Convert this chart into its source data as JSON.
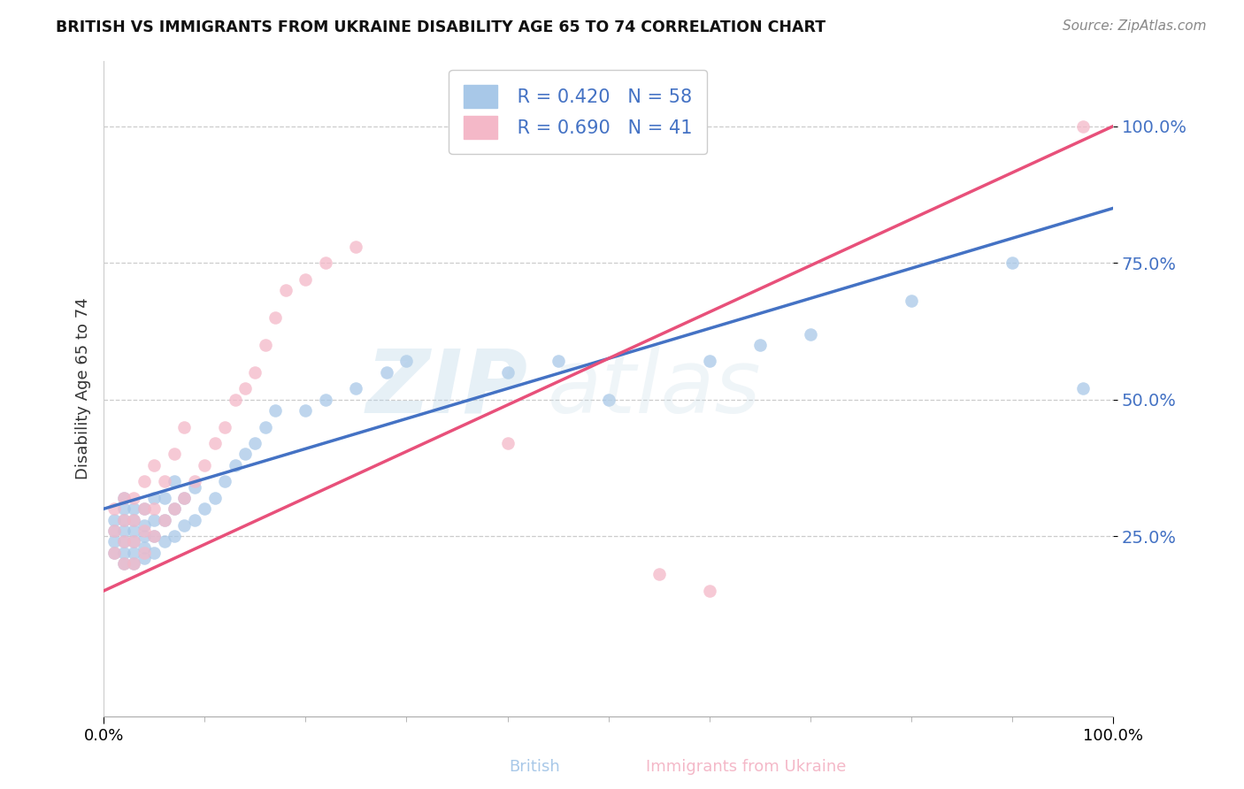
{
  "title": "BRITISH VS IMMIGRANTS FROM UKRAINE DISABILITY AGE 65 TO 74 CORRELATION CHART",
  "source": "Source: ZipAtlas.com",
  "ylabel": "Disability Age 65 to 74",
  "xlim": [
    0.0,
    1.0
  ],
  "ylim": [
    -0.08,
    1.12
  ],
  "yticks": [
    0.25,
    0.5,
    0.75,
    1.0
  ],
  "ytick_labels": [
    "25.0%",
    "50.0%",
    "75.0%",
    "100.0%"
  ],
  "xtick_labels": [
    "0.0%",
    "100.0%"
  ],
  "british_color": "#a8c8e8",
  "ukraine_color": "#f4b8c8",
  "british_line_color": "#4472c4",
  "ukraine_line_color": "#e8507a",
  "r_british": 0.42,
  "n_british": 58,
  "r_ukraine": 0.69,
  "n_ukraine": 41,
  "legend_text_color": "#4472c4",
  "watermark_zip": "ZIP",
  "watermark_atlas": "atlas",
  "british_x": [
    0.01,
    0.01,
    0.01,
    0.01,
    0.02,
    0.02,
    0.02,
    0.02,
    0.02,
    0.02,
    0.02,
    0.03,
    0.03,
    0.03,
    0.03,
    0.03,
    0.03,
    0.04,
    0.04,
    0.04,
    0.04,
    0.04,
    0.05,
    0.05,
    0.05,
    0.05,
    0.06,
    0.06,
    0.06,
    0.07,
    0.07,
    0.07,
    0.08,
    0.08,
    0.09,
    0.09,
    0.1,
    0.11,
    0.12,
    0.13,
    0.14,
    0.15,
    0.16,
    0.17,
    0.2,
    0.22,
    0.25,
    0.28,
    0.3,
    0.4,
    0.45,
    0.5,
    0.6,
    0.65,
    0.7,
    0.8,
    0.9,
    0.97
  ],
  "british_y": [
    0.22,
    0.24,
    0.26,
    0.28,
    0.2,
    0.22,
    0.24,
    0.26,
    0.28,
    0.3,
    0.32,
    0.2,
    0.22,
    0.24,
    0.26,
    0.28,
    0.3,
    0.21,
    0.23,
    0.25,
    0.27,
    0.3,
    0.22,
    0.25,
    0.28,
    0.32,
    0.24,
    0.28,
    0.32,
    0.25,
    0.3,
    0.35,
    0.27,
    0.32,
    0.28,
    0.34,
    0.3,
    0.32,
    0.35,
    0.38,
    0.4,
    0.42,
    0.45,
    0.48,
    0.48,
    0.5,
    0.52,
    0.55,
    0.57,
    0.55,
    0.57,
    0.5,
    0.57,
    0.6,
    0.62,
    0.68,
    0.75,
    0.52
  ],
  "ukraine_x": [
    0.01,
    0.01,
    0.01,
    0.02,
    0.02,
    0.02,
    0.02,
    0.03,
    0.03,
    0.03,
    0.03,
    0.04,
    0.04,
    0.04,
    0.04,
    0.05,
    0.05,
    0.05,
    0.06,
    0.06,
    0.07,
    0.07,
    0.08,
    0.08,
    0.09,
    0.1,
    0.11,
    0.12,
    0.13,
    0.14,
    0.15,
    0.16,
    0.17,
    0.18,
    0.2,
    0.22,
    0.25,
    0.4,
    0.55,
    0.6,
    0.97
  ],
  "ukraine_y": [
    0.22,
    0.26,
    0.3,
    0.2,
    0.24,
    0.28,
    0.32,
    0.2,
    0.24,
    0.28,
    0.32,
    0.22,
    0.26,
    0.3,
    0.35,
    0.25,
    0.3,
    0.38,
    0.28,
    0.35,
    0.3,
    0.4,
    0.32,
    0.45,
    0.35,
    0.38,
    0.42,
    0.45,
    0.5,
    0.52,
    0.55,
    0.6,
    0.65,
    0.7,
    0.72,
    0.75,
    0.78,
    0.42,
    0.18,
    0.15,
    1.0
  ]
}
